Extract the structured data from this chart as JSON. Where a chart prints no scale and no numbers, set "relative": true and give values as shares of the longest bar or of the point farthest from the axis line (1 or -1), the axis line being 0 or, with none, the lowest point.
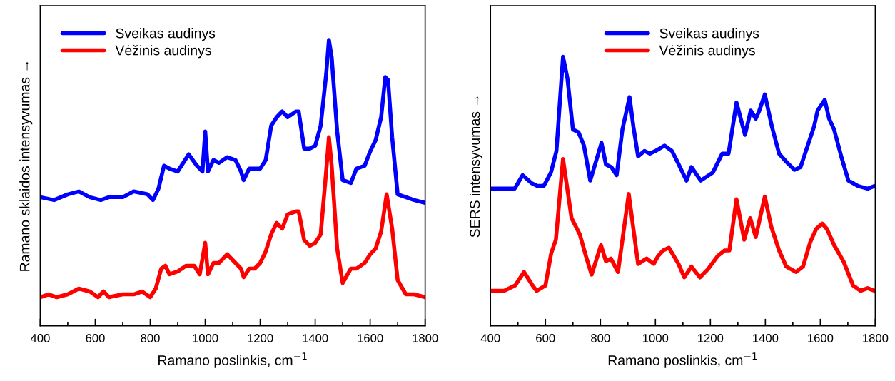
{
  "chart_data": [
    {
      "type": "line",
      "relative": true,
      "xlabel": "Ramano poslinkis, cm$^{−1}$",
      "ylabel": "Ramano sklaidos intensyvumas →",
      "xlim": [
        400,
        1800
      ],
      "xticks": [
        400,
        600,
        800,
        1000,
        1200,
        1400,
        1600,
        1800
      ],
      "tick_labels": "x",
      "grid": false,
      "legend": "top left",
      "line_style": "solid",
      "series": [
        {
          "name": "Sveikas audinys",
          "color": "#0000ff",
          "x": [
            400,
            450,
            500,
            540,
            580,
            620,
            650,
            700,
            740,
            790,
            810,
            830,
            850,
            870,
            900,
            940,
            970,
            990,
            1000,
            1010,
            1030,
            1050,
            1080,
            1110,
            1130,
            1140,
            1160,
            1180,
            1200,
            1220,
            1240,
            1260,
            1280,
            1300,
            1330,
            1340,
            1360,
            1380,
            1400,
            1420,
            1440,
            1450,
            1460,
            1480,
            1500,
            1530,
            1550,
            1580,
            1600,
            1620,
            1640,
            1655,
            1665,
            1680,
            1700,
            1730,
            1760,
            1800
          ],
          "values": [
            0.45,
            0.44,
            0.46,
            0.47,
            0.45,
            0.44,
            0.45,
            0.45,
            0.47,
            0.46,
            0.44,
            0.48,
            0.56,
            0.55,
            0.54,
            0.6,
            0.56,
            0.54,
            0.68,
            0.54,
            0.58,
            0.57,
            0.59,
            0.58,
            0.54,
            0.51,
            0.55,
            0.55,
            0.55,
            0.58,
            0.7,
            0.73,
            0.75,
            0.73,
            0.75,
            0.75,
            0.62,
            0.62,
            0.63,
            0.7,
            0.88,
            1,
            0.94,
            0.68,
            0.51,
            0.5,
            0.55,
            0.56,
            0.61,
            0.65,
            0.73,
            0.87,
            0.86,
            0.66,
            0.46,
            0.45,
            0.44,
            0.43
          ]
        },
        {
          "name": "Vėžinis audinys",
          "color": "#ff0000",
          "x": [
            400,
            430,
            460,
            500,
            540,
            580,
            610,
            630,
            650,
            700,
            740,
            770,
            800,
            820,
            840,
            855,
            870,
            900,
            930,
            960,
            980,
            1000,
            1010,
            1030,
            1050,
            1080,
            1100,
            1130,
            1140,
            1160,
            1180,
            1200,
            1220,
            1240,
            1260,
            1280,
            1300,
            1330,
            1340,
            1360,
            1380,
            1400,
            1420,
            1440,
            1450,
            1460,
            1480,
            1500,
            1530,
            1550,
            1580,
            1600,
            1620,
            1640,
            1660,
            1680,
            1700,
            1730,
            1760,
            1800
          ],
          "values": [
            0.1,
            0.11,
            0.1,
            0.11,
            0.13,
            0.12,
            0.1,
            0.12,
            0.1,
            0.11,
            0.11,
            0.12,
            0.1,
            0.13,
            0.2,
            0.21,
            0.18,
            0.19,
            0.21,
            0.21,
            0.18,
            0.29,
            0.18,
            0.22,
            0.22,
            0.25,
            0.23,
            0.2,
            0.17,
            0.2,
            0.2,
            0.22,
            0.26,
            0.32,
            0.36,
            0.34,
            0.39,
            0.4,
            0.4,
            0.3,
            0.28,
            0.29,
            0.32,
            0.54,
            0.66,
            0.56,
            0.27,
            0.15,
            0.2,
            0.2,
            0.22,
            0.25,
            0.27,
            0.33,
            0.46,
            0.34,
            0.16,
            0.11,
            0.11,
            0.1
          ]
        }
      ]
    },
    {
      "type": "line",
      "relative": true,
      "xlabel": "Ramano poslinkis, cm$^{−1}$",
      "ylabel": "SERS intensyvumas →",
      "xlim": [
        400,
        1800
      ],
      "xticks": [
        400,
        600,
        800,
        1000,
        1200,
        1400,
        1600,
        1800
      ],
      "tick_labels": "x",
      "grid": false,
      "legend": "top",
      "line_style": "solid",
      "series": [
        {
          "name": "Sveikas audinys",
          "color": "#0000ff",
          "x": [
            400,
            450,
            488,
            517,
            550,
            570,
            594,
            620,
            640,
            664,
            680,
            700,
            720,
            740,
            763,
            804,
            820,
            840,
            859,
            880,
            906,
            920,
            937,
            960,
            980,
            1000,
            1033,
            1060,
            1080,
            1113,
            1131,
            1165,
            1209,
            1243,
            1266,
            1295,
            1326,
            1347,
            1365,
            1378,
            1398,
            1424,
            1450,
            1476,
            1506,
            1528,
            1554,
            1577,
            1590,
            1616,
            1632,
            1650,
            1676,
            1702,
            1737,
            1772,
            1798
          ],
          "values": [
            0.51,
            0.51,
            0.51,
            0.56,
            0.53,
            0.52,
            0.52,
            0.57,
            0.65,
            1,
            0.92,
            0.73,
            0.72,
            0.67,
            0.54,
            0.68,
            0.6,
            0.59,
            0.56,
            0.73,
            0.85,
            0.74,
            0.63,
            0.65,
            0.64,
            0.65,
            0.67,
            0.65,
            0.61,
            0.54,
            0.59,
            0.54,
            0.57,
            0.64,
            0.64,
            0.83,
            0.71,
            0.8,
            0.77,
            0.8,
            0.86,
            0.74,
            0.64,
            0.61,
            0.58,
            0.59,
            0.67,
            0.74,
            0.8,
            0.84,
            0.77,
            0.73,
            0.63,
            0.54,
            0.52,
            0.51,
            0.52
          ]
        },
        {
          "name": "Vėžinis audinys",
          "color": "#ff0000",
          "x": [
            400,
            450,
            490,
            522,
            553,
            568,
            600,
            621,
            638,
            664,
            695,
            725,
            747,
            768,
            802,
            820,
            838,
            864,
            903,
            937,
            968,
            994,
            1010,
            1028,
            1049,
            1084,
            1105,
            1131,
            1162,
            1191,
            1227,
            1252,
            1269,
            1295,
            1323,
            1345,
            1365,
            1398,
            1421,
            1450,
            1476,
            1511,
            1537,
            1563,
            1585,
            1607,
            1624,
            1650,
            1684,
            1719,
            1746,
            1772,
            1798
          ],
          "values": [
            0.13,
            0.13,
            0.15,
            0.2,
            0.15,
            0.13,
            0.15,
            0.27,
            0.32,
            0.62,
            0.4,
            0.34,
            0.26,
            0.19,
            0.3,
            0.24,
            0.25,
            0.2,
            0.49,
            0.23,
            0.25,
            0.23,
            0.26,
            0.28,
            0.29,
            0.23,
            0.18,
            0.22,
            0.18,
            0.21,
            0.26,
            0.28,
            0.28,
            0.47,
            0.32,
            0.4,
            0.33,
            0.48,
            0.37,
            0.28,
            0.22,
            0.2,
            0.22,
            0.31,
            0.36,
            0.38,
            0.36,
            0.3,
            0.24,
            0.15,
            0.13,
            0.14,
            0.13
          ]
        }
      ]
    }
  ]
}
